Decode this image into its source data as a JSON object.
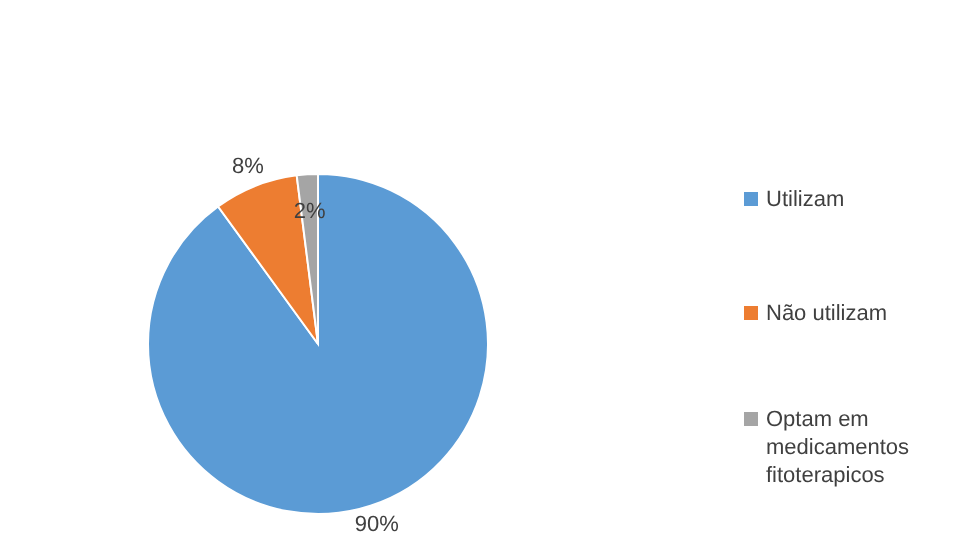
{
  "chart_data": {
    "type": "pie",
    "categories": [
      "Utilizam",
      "Não utilizam",
      "Optam em medicamentos fitoterapicos"
    ],
    "values": [
      90,
      8,
      2
    ],
    "colors": [
      "#5b9bd5",
      "#ed7d31",
      "#a5a5a5"
    ],
    "value_labels": [
      "90%",
      "8%",
      "2%"
    ],
    "legend": "right"
  }
}
